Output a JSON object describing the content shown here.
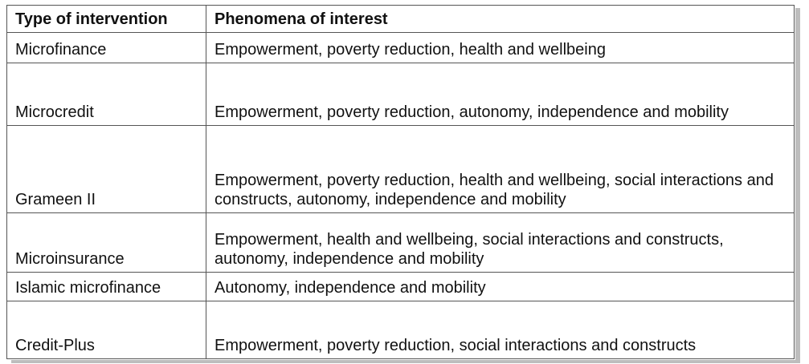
{
  "table": {
    "headers": [
      "Type of intervention",
      "Phenomena of interest"
    ],
    "rows": [
      {
        "type": "Microfinance",
        "phenomena": "Empowerment, poverty reduction, health and wellbeing"
      },
      {
        "type": "Microcredit",
        "phenomena": "Empowerment, poverty reduction, autonomy, independence and mobility"
      },
      {
        "type": "Grameen II",
        "phenomena": "Empowerment, poverty reduction, health and wellbeing, social interactions and constructs, autonomy, independence and mobility"
      },
      {
        "type": "Microinsurance",
        "phenomena": "Empowerment, health and wellbeing, social interactions and constructs, autonomy, independence and mobility"
      },
      {
        "type": "Islamic microfinance",
        "phenomena": "Autonomy, independence and mobility"
      },
      {
        "type": "Credit-Plus",
        "phenomena": "Empowerment, poverty reduction, social interactions and constructs"
      }
    ]
  }
}
